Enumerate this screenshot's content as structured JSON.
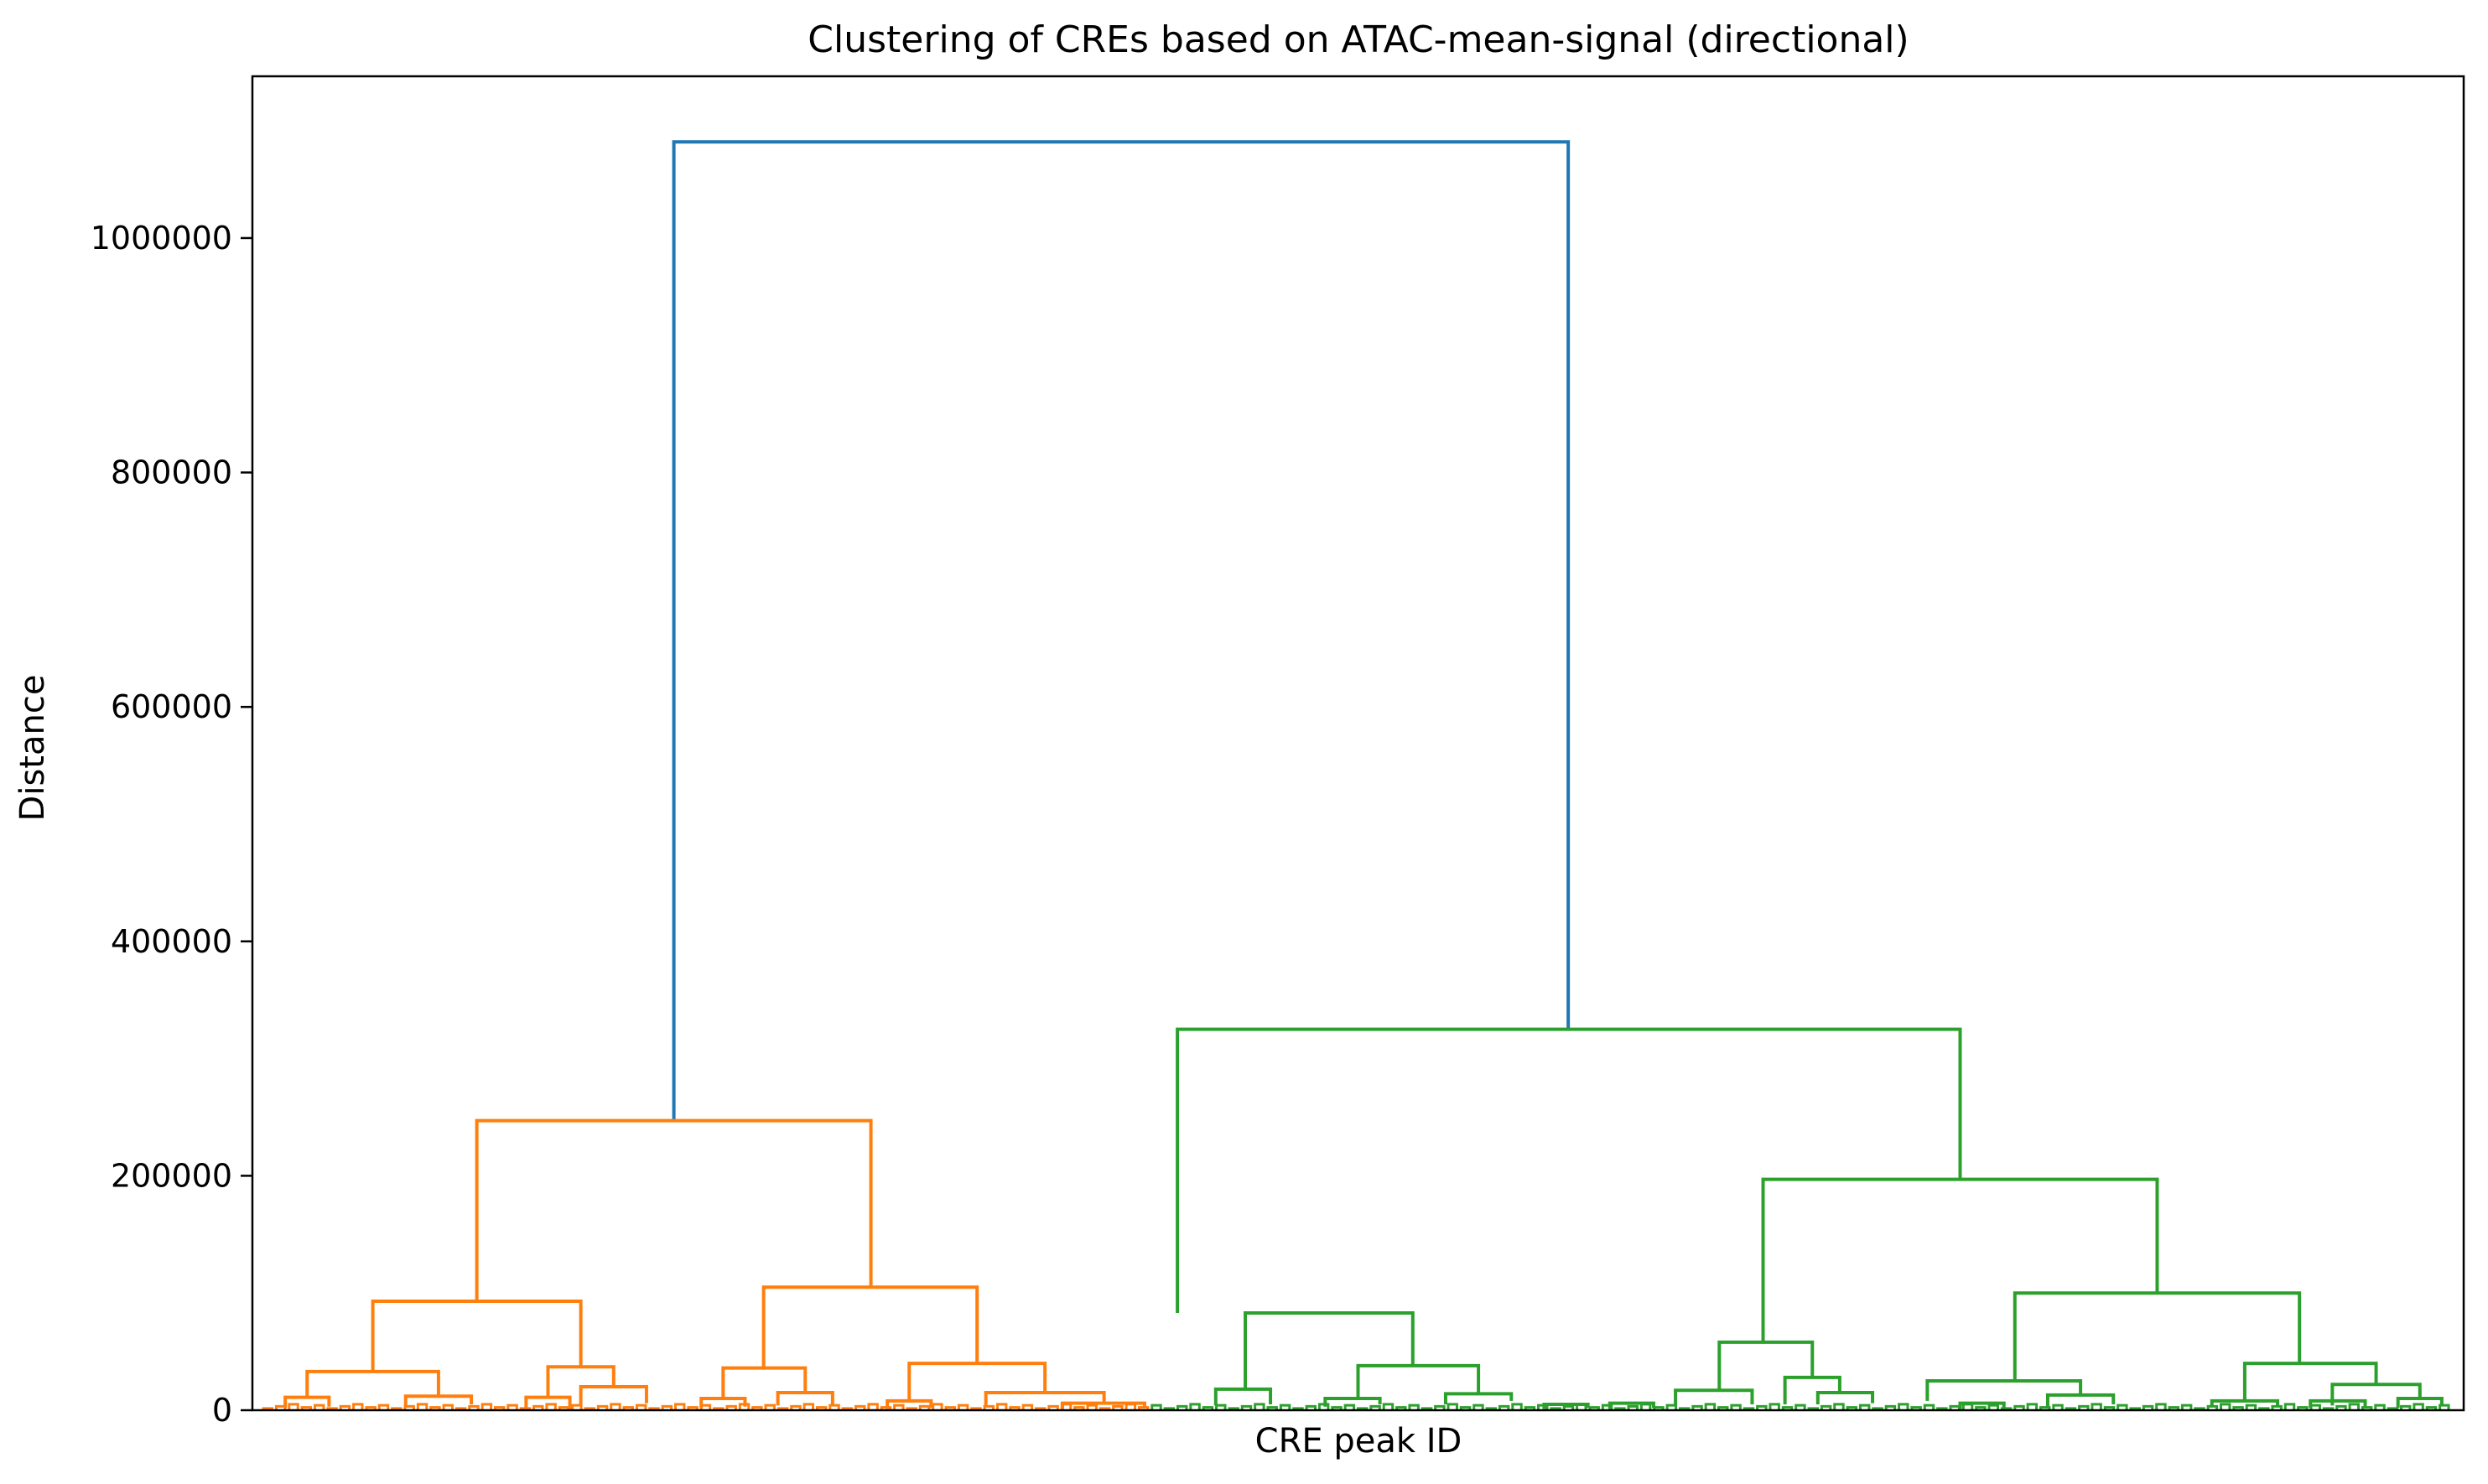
{
  "chart_data": {
    "type": "dendrogram",
    "title": "Clustering of CREs based on ATAC-mean-signal (directional)",
    "xlabel": "CRE peak ID",
    "ylabel": "Distance",
    "ylim": [
      0,
      1138000
    ],
    "yticks": [
      0,
      200000,
      400000,
      600000,
      800000,
      1000000
    ],
    "yticklabels": [
      "0",
      "200000",
      "400000",
      "600000",
      "800000",
      "1000000"
    ],
    "xticks_visible": false,
    "grid": false,
    "legend": "none",
    "colors": {
      "root": "#1f77b4",
      "cluster1": "#ff7f0e",
      "cluster2": "#2ca02c",
      "axis": "#000000"
    },
    "leaf_count_est": 170,
    "links": [
      {
        "c": "root",
        "x1": 38.5,
        "x2": 120.2,
        "y": 1082000,
        "h1": 247000,
        "h2": 325000
      },
      {
        "c": "cluster1",
        "x1": 20.5,
        "x2": 56.5,
        "y": 247000,
        "h1": 93000,
        "h2": 105000
      },
      {
        "c": "cluster1",
        "x1": 11.0,
        "x2": 30.0,
        "y": 93000,
        "h1": 33000,
        "h2": 37000
      },
      {
        "c": "cluster1",
        "x1": 46.7,
        "x2": 66.2,
        "y": 105000,
        "h1": 36000,
        "h2": 40000
      },
      {
        "c": "cluster1",
        "x1": 5.0,
        "x2": 17.0,
        "y": 33000,
        "h1": 11000,
        "h2": 12000
      },
      {
        "c": "cluster1",
        "x1": 27.0,
        "x2": 33.0,
        "y": 37000,
        "h1": 11000,
        "h2": 20000
      },
      {
        "c": "cluster1",
        "x1": 43.0,
        "x2": 50.5,
        "y": 36000,
        "h1": 10000,
        "h2": 15000
      },
      {
        "c": "cluster1",
        "x1": 60.0,
        "x2": 72.4,
        "y": 40000,
        "h1": 8000,
        "h2": 15000
      },
      {
        "c": "cluster1",
        "x1": 3.0,
        "x2": 7.0,
        "y": 11000,
        "h1": 2000,
        "h2": 3000
      },
      {
        "c": "cluster1",
        "x1": 14.0,
        "x2": 20.0,
        "y": 12000,
        "h1": 4000,
        "h2": 5000
      },
      {
        "c": "cluster1",
        "x1": 25.0,
        "x2": 29.0,
        "y": 11000,
        "h1": 0,
        "h2": 0
      },
      {
        "c": "cluster1",
        "x1": 30.0,
        "x2": 36.0,
        "y": 20000,
        "h1": 5000,
        "h2": 6000
      },
      {
        "c": "cluster1",
        "x1": 41.0,
        "x2": 45.0,
        "y": 10000,
        "h1": 2000,
        "h2": 3000
      },
      {
        "c": "cluster1",
        "x1": 48.0,
        "x2": 53.0,
        "y": 15000,
        "h1": 4000,
        "h2": 5000
      },
      {
        "c": "cluster1",
        "x1": 58.0,
        "x2": 62.0,
        "y": 8000,
        "h1": 1000,
        "h2": 2000
      },
      {
        "c": "cluster1",
        "x1": 67.0,
        "x2": 77.8,
        "y": 15000,
        "h1": 4000,
        "h2": 6000
      },
      {
        "c": "cluster1",
        "x1": 74.0,
        "x2": 81.5,
        "y": 6000,
        "h1": 1000,
        "h2": 2000
      },
      {
        "c": "cluster2",
        "x1": 84.5,
        "x2": 156.0,
        "y": 325000,
        "h1": 83000,
        "h2": 197000
      },
      {
        "c": "cluster2",
        "x1": 138.0,
        "x2": 174.0,
        "y": 197000,
        "h1": 58000,
        "h2": 100000
      },
      {
        "c": "cluster2",
        "x1": 161.0,
        "x2": 187.0,
        "y": 100000,
        "h1": 25000,
        "h2": 40000
      },
      {
        "c": "cluster2",
        "x1": 90.7,
        "x2": 106.0,
        "y": 83000,
        "h1": 18000,
        "h2": 38000
      },
      {
        "c": "cluster2",
        "x1": 134.0,
        "x2": 142.5,
        "y": 58000,
        "h1": 17000,
        "h2": 28000
      },
      {
        "c": "cluster2",
        "x1": 153.0,
        "x2": 167.0,
        "y": 25000,
        "h1": 8000,
        "h2": 13000
      },
      {
        "c": "cluster2",
        "x1": 182.0,
        "x2": 194.0,
        "y": 40000,
        "h1": 8000,
        "h2": 22000
      },
      {
        "c": "cluster2",
        "x1": 101.0,
        "x2": 112.0,
        "y": 38000,
        "h1": 10000,
        "h2": 14000
      },
      {
        "c": "cluster2",
        "x1": 88.0,
        "x2": 93.0,
        "y": 18000,
        "h1": 4000,
        "h2": 5000
      },
      {
        "c": "cluster2",
        "x1": 130.0,
        "x2": 137.0,
        "y": 17000,
        "h1": 4000,
        "h2": 5000
      },
      {
        "c": "cluster2",
        "x1": 140.0,
        "x2": 145.0,
        "y": 28000,
        "h1": 5000,
        "h2": 15000
      },
      {
        "c": "cluster2",
        "x1": 164.0,
        "x2": 170.0,
        "y": 13000,
        "h1": 3000,
        "h2": 5000
      },
      {
        "c": "cluster2",
        "x1": 190.0,
        "x2": 198.0,
        "y": 22000,
        "h1": 4000,
        "h2": 10000
      },
      {
        "c": "cluster2",
        "x1": 98.0,
        "x2": 103.0,
        "y": 10000,
        "h1": 3000,
        "h2": 5000
      },
      {
        "c": "cluster2",
        "x1": 109.0,
        "x2": 115.0,
        "y": 14000,
        "h1": 5000,
        "h2": 8000
      },
      {
        "c": "cluster2",
        "x1": 143.0,
        "x2": 148.0,
        "y": 15000,
        "h1": 5000,
        "h2": 6000
      },
      {
        "c": "cluster2",
        "x1": 179.0,
        "x2": 185.0,
        "y": 8000,
        "h1": 3000,
        "h2": 4000
      },
      {
        "c": "cluster2",
        "x1": 188.0,
        "x2": 193.0,
        "y": 8000,
        "h1": 2000,
        "h2": 3000
      },
      {
        "c": "cluster2",
        "x1": 196.0,
        "x2": 200.0,
        "y": 10000,
        "h1": 2000,
        "h2": 4000
      },
      {
        "c": "cluster2",
        "x1": 156.0,
        "x2": 160.0,
        "y": 6000,
        "h1": 1000,
        "h2": 2000
      },
      {
        "c": "cluster2",
        "x1": 118.0,
        "x2": 122.0,
        "y": 5000,
        "h1": 1000,
        "h2": 2000
      },
      {
        "c": "cluster2",
        "x1": 124.0,
        "x2": 128.0,
        "y": 6000,
        "h1": 1000,
        "h2": 2000
      }
    ]
  }
}
